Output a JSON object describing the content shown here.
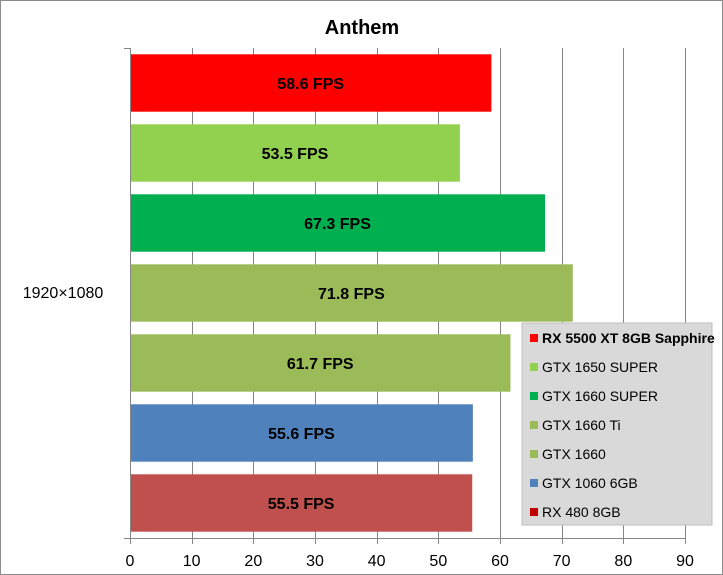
{
  "chart_data": {
    "type": "bar",
    "orientation": "horizontal",
    "title": "Anthem",
    "categories": [
      "1920×1080"
    ],
    "xlim": [
      0,
      90
    ],
    "x_ticks": [
      0,
      10,
      20,
      30,
      40,
      50,
      60,
      70,
      80,
      90
    ],
    "grid": true,
    "legend_position": "bottom-right",
    "series": [
      {
        "name": "RX 5500 XT 8GB Sapphire",
        "values": [
          58.6
        ],
        "label": "58.6 FPS",
        "color": "#ff0000",
        "legend_color": "#ff0000",
        "legend_bold": true
      },
      {
        "name": "GTX 1650 SUPER",
        "values": [
          53.5
        ],
        "label": "53.5 FPS",
        "color": "#92d050",
        "legend_color": "#92d050",
        "legend_bold": false
      },
      {
        "name": "GTX 1660 SUPER",
        "values": [
          67.3
        ],
        "label": "67.3 FPS",
        "color": "#00b050",
        "legend_color": "#00b050",
        "legend_bold": false
      },
      {
        "name": "GTX 1660 Ti",
        "values": [
          71.8
        ],
        "label": "71.8 FPS",
        "color": "#9bbb59",
        "legend_color": "#9bbb59",
        "legend_bold": false
      },
      {
        "name": "GTX 1660",
        "values": [
          61.7
        ],
        "label": "61.7 FPS",
        "color": "#9bbb59",
        "legend_color": "#9bbb59",
        "legend_bold": false
      },
      {
        "name": "GTX 1060 6GB",
        "values": [
          55.6
        ],
        "label": "55.6 FPS",
        "color": "#4f81bd",
        "legend_color": "#4f81bd",
        "legend_bold": false
      },
      {
        "name": "RX 480 8GB",
        "values": [
          55.5
        ],
        "label": "55.5 FPS",
        "color": "#c0504d",
        "legend_color": "#c00000",
        "legend_bold": false
      }
    ]
  }
}
